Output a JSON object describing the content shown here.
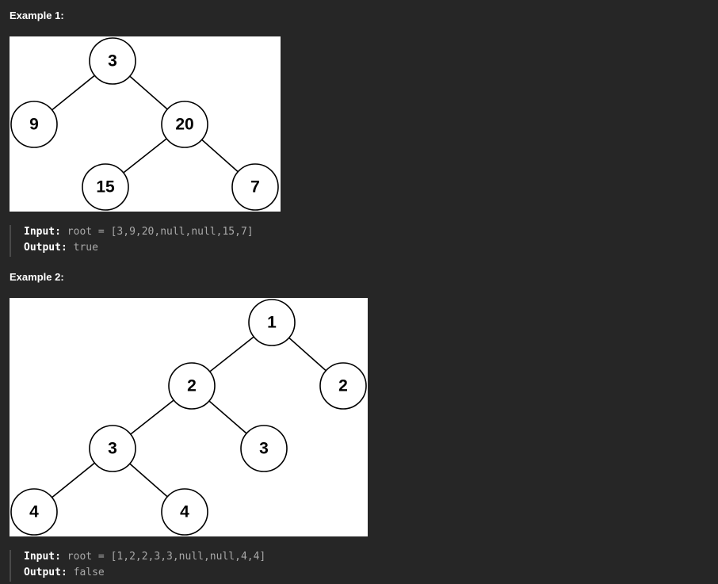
{
  "examples": [
    {
      "title": "Example 1:",
      "input_label": "Input:",
      "input_value": "root = [3,9,20,null,null,15,7]",
      "output_label": "Output:",
      "output_value": "true",
      "nodes": [
        "3",
        "9",
        "20",
        "15",
        "7"
      ]
    },
    {
      "title": "Example 2:",
      "input_label": "Input:",
      "input_value": "root = [1,2,2,3,3,null,null,4,4]",
      "output_label": "Output:",
      "output_value": "false",
      "nodes": [
        "1",
        "2",
        "2",
        "3",
        "3",
        "4",
        "4"
      ]
    }
  ],
  "colors": {
    "background": "#262626",
    "diagram_background": "#ffffff",
    "text": "#ffffff",
    "muted_text": "#a8a8a8"
  }
}
